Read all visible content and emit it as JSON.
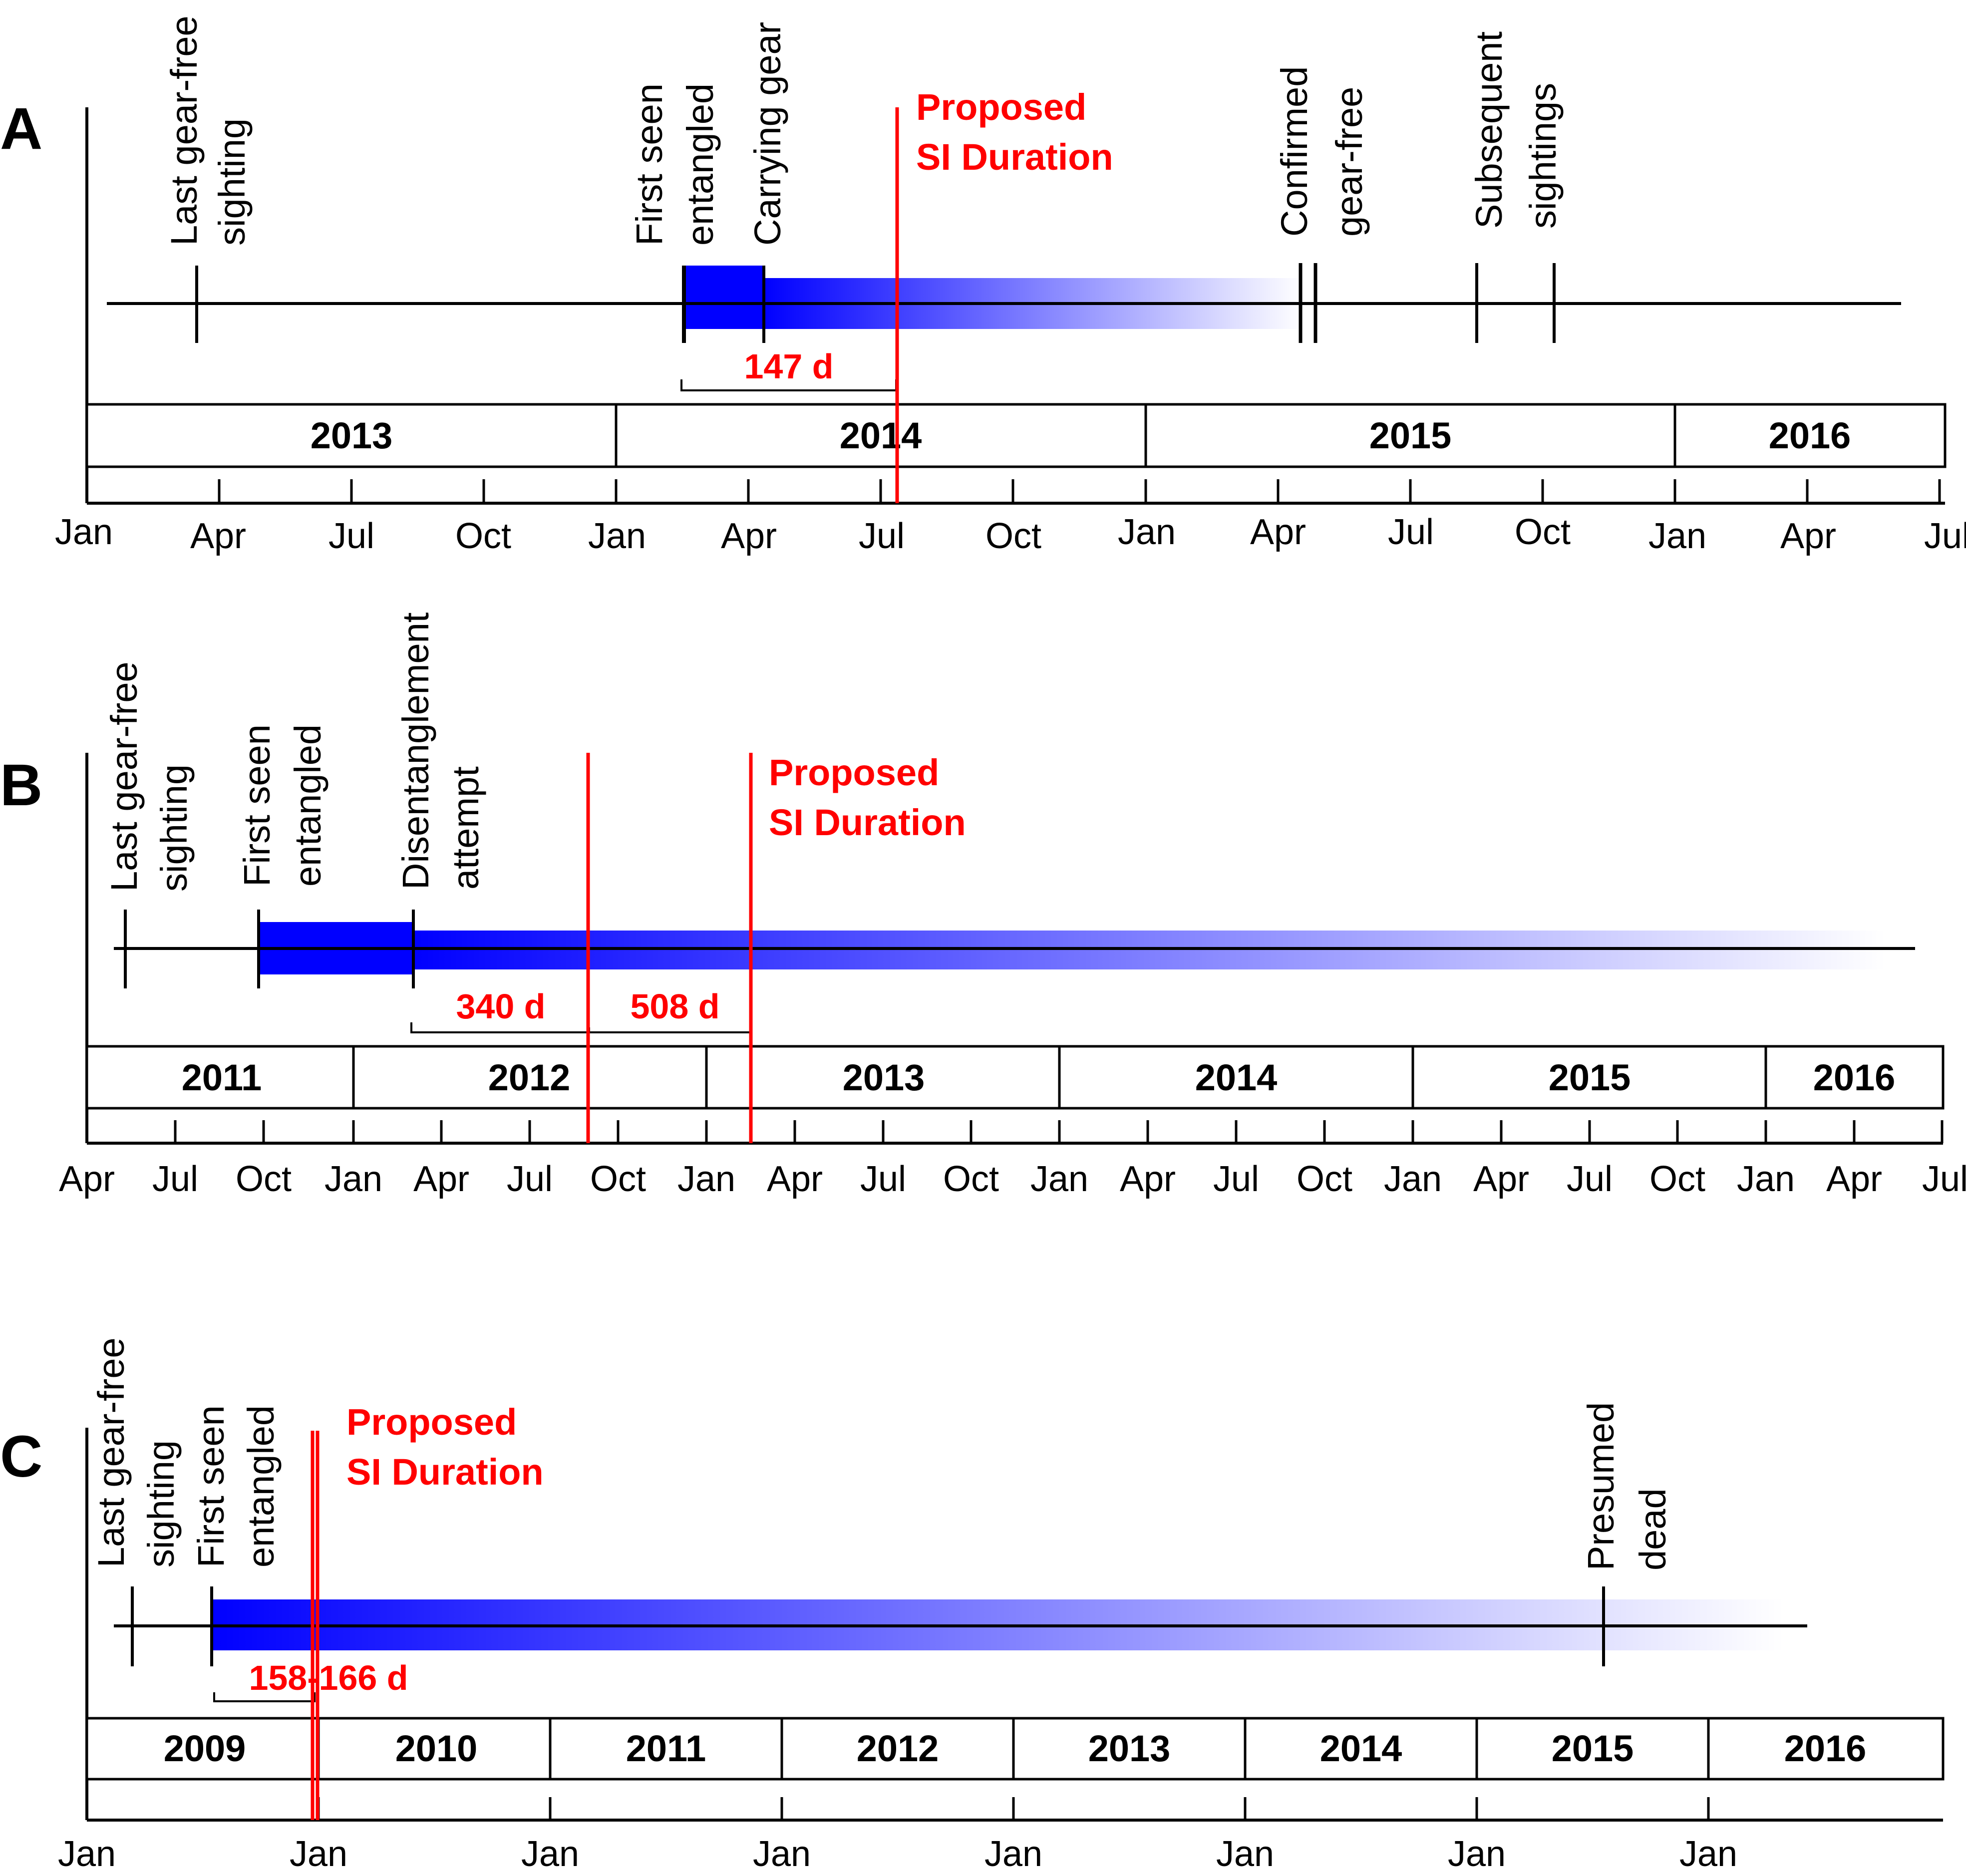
{
  "colors": {
    "event_line": "#000000",
    "duration_marker": "#ff0000",
    "entangled_bar": "#0000ff",
    "background": "#ffffff"
  },
  "panels": [
    {
      "id": "A",
      "panel_label": "A",
      "year_labels": [
        "2013",
        "2014",
        "2015",
        "2016"
      ],
      "month_labels": [
        "Jan",
        "Apr",
        "Jul",
        "Oct",
        "Jan",
        "Apr",
        "Jul",
        "Oct",
        "Jan",
        "Apr",
        "Jul",
        "Oct",
        "Jan",
        "Apr",
        "Jul"
      ],
      "events": [
        {
          "lines": [
            "Last gear-free",
            "sighting"
          ]
        },
        {
          "lines": [
            "First seen",
            "entangled"
          ]
        },
        {
          "lines": [
            "Carrying gear"
          ]
        },
        {
          "lines": [
            "Confirmed",
            "gear-free"
          ]
        },
        {
          "lines": [
            "Subsequent",
            "sightings"
          ]
        }
      ],
      "duration_label": [
        "Proposed",
        "SI Duration"
      ],
      "interval_labels": [
        "147 d"
      ]
    },
    {
      "id": "B",
      "panel_label": "B",
      "year_labels": [
        "2011",
        "2012",
        "2013",
        "2014",
        "2015",
        "2016"
      ],
      "month_labels": [
        "Apr",
        "Jul",
        "Oct",
        "Jan",
        "Apr",
        "Jul",
        "Oct",
        "Jan",
        "Apr",
        "Jul",
        "Oct",
        "Jan",
        "Apr",
        "Jul",
        "Oct",
        "Jan",
        "Apr",
        "Jul",
        "Oct",
        "Jan",
        "Apr",
        "Jul"
      ],
      "events": [
        {
          "lines": [
            "Last gear-free",
            "sighting"
          ]
        },
        {
          "lines": [
            "First seen",
            "entangled"
          ]
        },
        {
          "lines": [
            "Disentanglement",
            "attempt"
          ]
        }
      ],
      "duration_label": [
        "Proposed",
        "SI Duration"
      ],
      "interval_labels": [
        "340 d",
        "508 d"
      ]
    },
    {
      "id": "C",
      "panel_label": "C",
      "year_labels": [
        "2009",
        "2010",
        "2011",
        "2012",
        "2013",
        "2014",
        "2015",
        "2016"
      ],
      "month_labels": [
        "Jan",
        "Jan",
        "Jan",
        "Jan",
        "Jan",
        "Jan",
        "Jan",
        "Jan"
      ],
      "events": [
        {
          "lines": [
            "Last gear-free",
            "sighting"
          ]
        },
        {
          "lines": [
            "First seen",
            "entangled"
          ]
        },
        {
          "lines": [
            "Presumed",
            "dead"
          ]
        }
      ],
      "duration_label": [
        "Proposed",
        "SI Duration"
      ],
      "interval_labels": [
        "158-166 d"
      ]
    }
  ]
}
